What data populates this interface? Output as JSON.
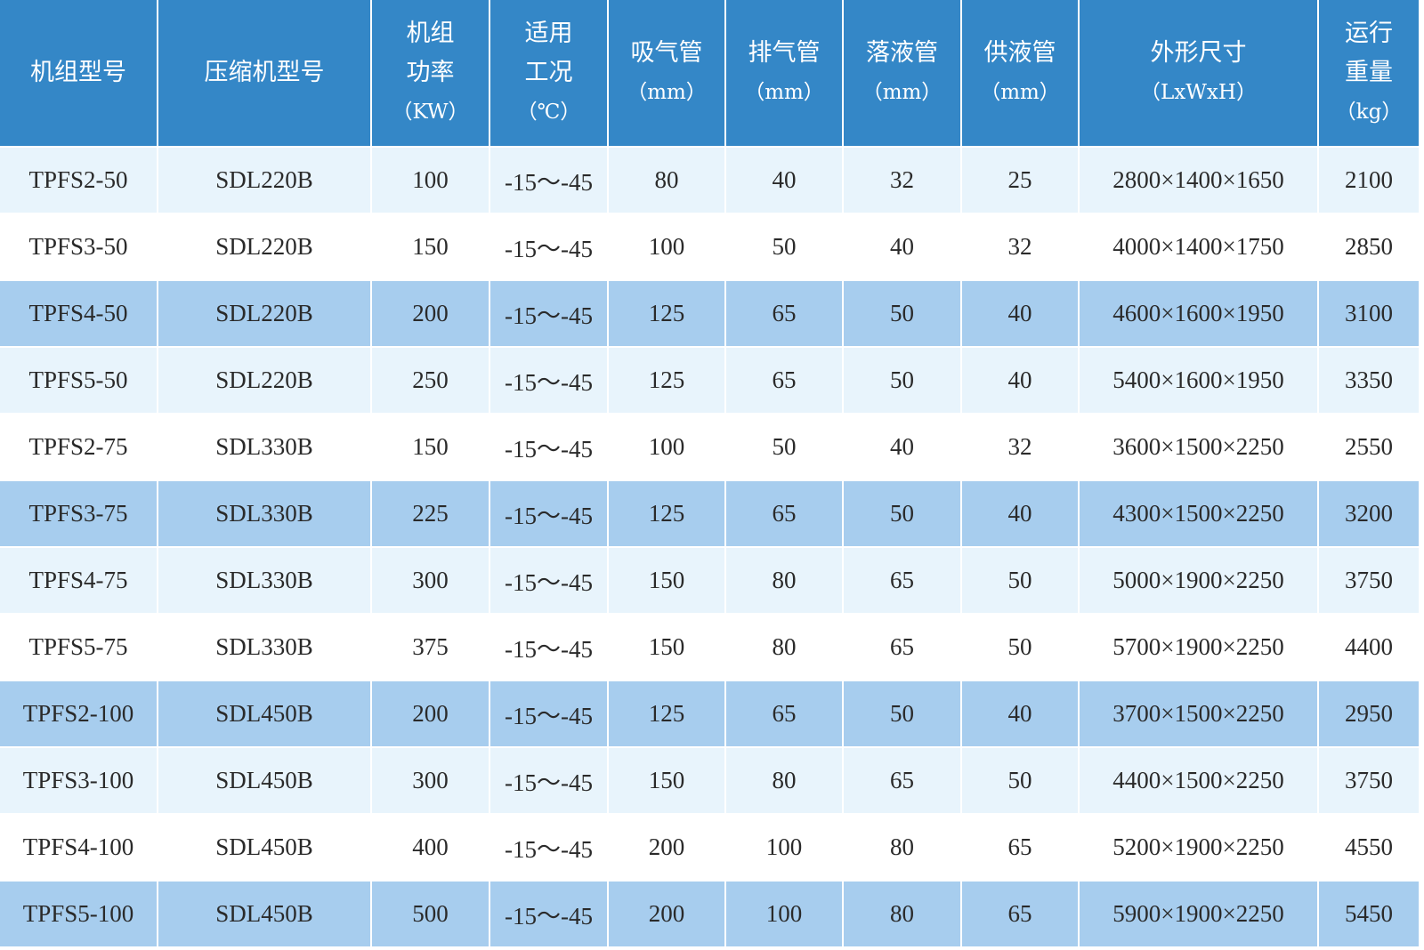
{
  "headers": [
    {
      "lines": [
        "机组型号"
      ]
    },
    {
      "lines": [
        "压缩机型号"
      ]
    },
    {
      "lines": [
        "机组",
        "功率",
        "（KW）"
      ]
    },
    {
      "lines": [
        "适用",
        "工况",
        "（℃）"
      ]
    },
    {
      "lines": [
        "吸气管",
        "（mm）"
      ]
    },
    {
      "lines": [
        "排气管",
        "（mm）"
      ]
    },
    {
      "lines": [
        "落液管",
        "（mm）"
      ]
    },
    {
      "lines": [
        "供液管",
        "（mm）"
      ]
    },
    {
      "lines": [
        "外形尺寸",
        "（LxWxH）"
      ]
    },
    {
      "lines": [
        "运行",
        "重量",
        "（kg）"
      ]
    }
  ],
  "colors": {
    "header": "#3487c7",
    "row_light": "#e8f4fc",
    "row_white": "#ffffff",
    "row_blue": "#a7cdee"
  },
  "rows": [
    [
      "TPFS2-50",
      "SDL220B",
      "100",
      "-15～-45",
      "80",
      "40",
      "32",
      "25",
      "2800×1400×1650",
      "2100"
    ],
    [
      "TPFS3-50",
      "SDL220B",
      "150",
      "-15～-45",
      "100",
      "50",
      "40",
      "32",
      "4000×1400×1750",
      "2850"
    ],
    [
      "TPFS4-50",
      "SDL220B",
      "200",
      "-15～-45",
      "125",
      "65",
      "50",
      "40",
      "4600×1600×1950",
      "3100"
    ],
    [
      "TPFS5-50",
      "SDL220B",
      "250",
      "-15～-45",
      "125",
      "65",
      "50",
      "40",
      "5400×1600×1950",
      "3350"
    ],
    [
      "TPFS2-75",
      "SDL330B",
      "150",
      "-15～-45",
      "100",
      "50",
      "40",
      "32",
      "3600×1500×2250",
      "2550"
    ],
    [
      "TPFS3-75",
      "SDL330B",
      "225",
      "-15～-45",
      "125",
      "65",
      "50",
      "40",
      "4300×1500×2250",
      "3200"
    ],
    [
      "TPFS4-75",
      "SDL330B",
      "300",
      "-15～-45",
      "150",
      "80",
      "65",
      "50",
      "5000×1900×2250",
      "3750"
    ],
    [
      "TPFS5-75",
      "SDL330B",
      "375",
      "-15～-45",
      "150",
      "80",
      "65",
      "50",
      "5700×1900×2250",
      "4400"
    ],
    [
      "TPFS2-100",
      "SDL450B",
      "200",
      "-15～-45",
      "125",
      "65",
      "50",
      "40",
      "3700×1500×2250",
      "2950"
    ],
    [
      "TPFS3-100",
      "SDL450B",
      "300",
      "-15～-45",
      "150",
      "80",
      "65",
      "50",
      "4400×1500×2250",
      "3750"
    ],
    [
      "TPFS4-100",
      "SDL450B",
      "400",
      "-15～-45",
      "200",
      "100",
      "80",
      "65",
      "5200×1900×2250",
      "4550"
    ],
    [
      "TPFS5-100",
      "SDL450B",
      "500",
      "-15～-45",
      "200",
      "100",
      "80",
      "65",
      "5900×1900×2250",
      "5450"
    ]
  ]
}
